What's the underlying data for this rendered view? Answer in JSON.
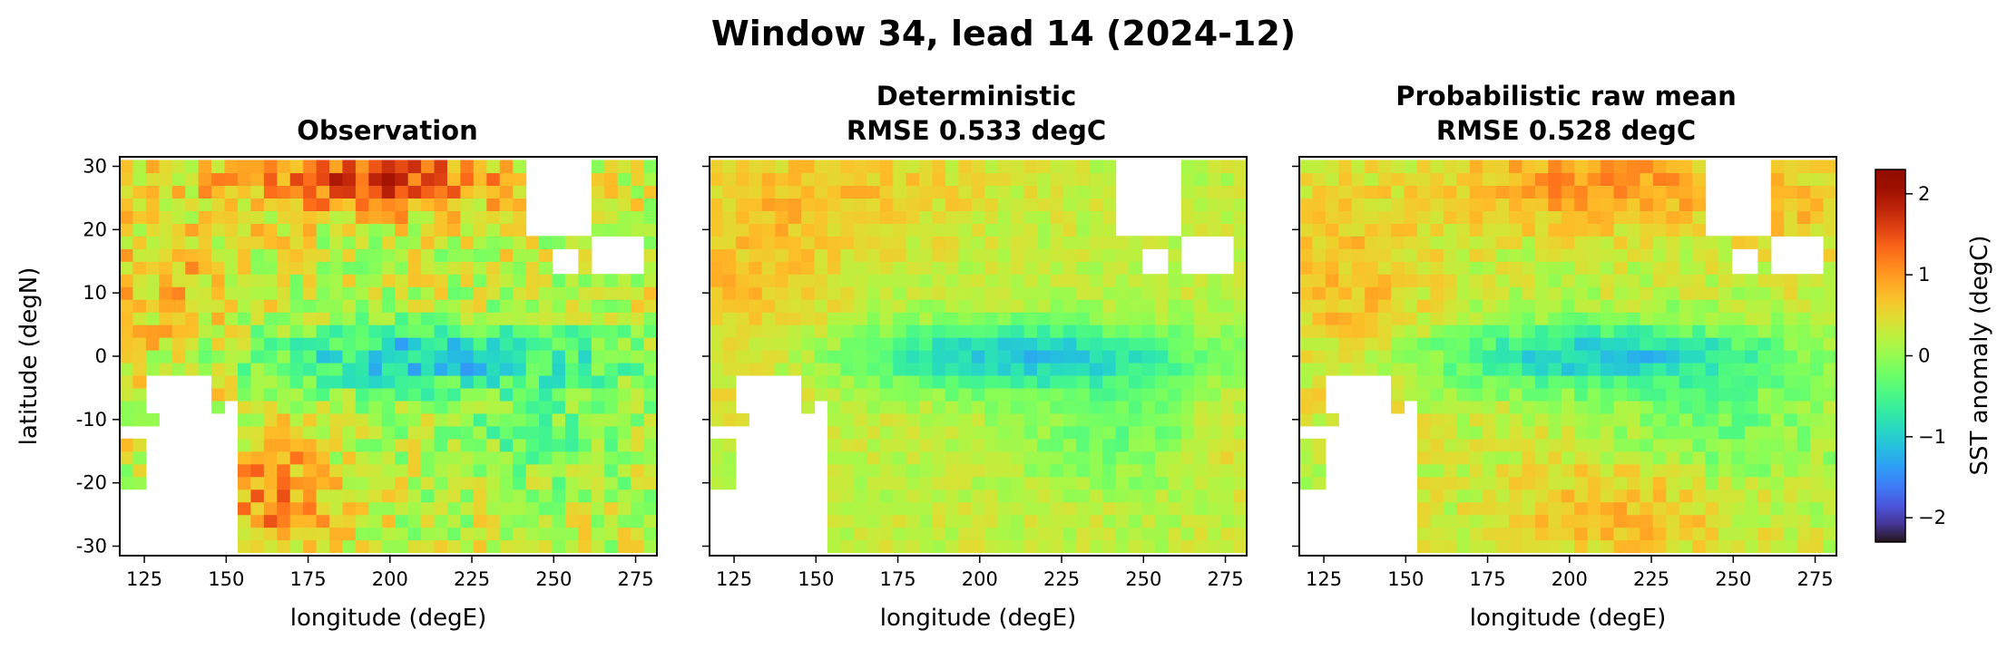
{
  "figure": {
    "title": "Window 34, lead 14 (2024-12)"
  },
  "chart_data": [
    {
      "type": "heatmap",
      "title": "Observation",
      "subtitle": "",
      "xlabel": "longitude (degE)",
      "ylabel": "latitude (degN)",
      "xticks": [
        125,
        150,
        175,
        200,
        225,
        250,
        275
      ],
      "yticks": [
        -30,
        -20,
        -10,
        0,
        10,
        20,
        30
      ],
      "xlim": [
        117.5,
        281.5
      ],
      "ylim": [
        -31.5,
        31.5
      ],
      "grid_resolution_deg": [
        4,
        2
      ],
      "field": "obs"
    },
    {
      "type": "heatmap",
      "title": "Deterministic",
      "subtitle": "RMSE 0.533 degC",
      "xlabel": "longitude (degE)",
      "ylabel": "",
      "xticks": [
        125,
        150,
        175,
        200,
        225,
        250,
        275
      ],
      "yticks": [
        -30,
        -20,
        -10,
        0,
        10,
        20,
        30
      ],
      "xlim": [
        117.5,
        281.5
      ],
      "ylim": [
        -31.5,
        31.5
      ],
      "grid_resolution_deg": [
        4,
        2
      ],
      "field": "det",
      "rmse_degC": 0.533
    },
    {
      "type": "heatmap",
      "title": "Probabilistic raw mean",
      "subtitle": "RMSE 0.528 degC",
      "xlabel": "longitude (degE)",
      "ylabel": "",
      "xticks": [
        125,
        150,
        175,
        200,
        225,
        250,
        275
      ],
      "yticks": [
        -30,
        -20,
        -10,
        0,
        10,
        20,
        30
      ],
      "xlim": [
        117.5,
        281.5
      ],
      "ylim": [
        -31.5,
        31.5
      ],
      "grid_resolution_deg": [
        4,
        2
      ],
      "field": "prob",
      "rmse_degC": 0.528
    }
  ],
  "colorbar": {
    "label": "SST anomaly (degC)",
    "colormap": "turbo",
    "vmin": -2.3,
    "vmax": 2.3,
    "ticks": [
      -2,
      -1,
      0,
      1,
      2
    ]
  }
}
